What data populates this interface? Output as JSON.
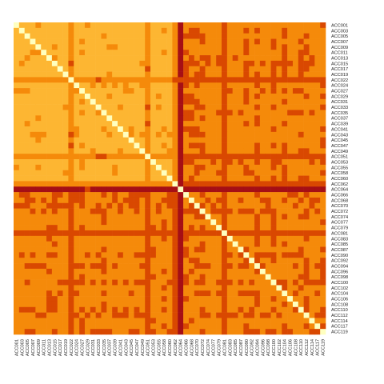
{
  "chart_data": {
    "type": "heatmap",
    "title": "",
    "xlabel": "",
    "ylabel": "",
    "row_labels": [
      "ACC001",
      "ACC003",
      "ACC005",
      "ACC007",
      "ACC009",
      "ACC011",
      "ACC013",
      "ACC015",
      "ACC017",
      "ACC019",
      "ACC022",
      "ACC024",
      "ACC027",
      "ACC029",
      "ACC031",
      "ACC033",
      "ACC035",
      "ACC037",
      "ACC039",
      "ACC041",
      "ACC043",
      "ACC045",
      "ACC047",
      "ACC049",
      "ACC051",
      "ACC053",
      "ACC055",
      "ACC058",
      "ACC060",
      "ACC062",
      "ACC064",
      "ACC066",
      "ACC068",
      "ACC070",
      "ACC072",
      "ACC074",
      "ACC077",
      "ACC079",
      "ACC081",
      "ACC083",
      "ACC085",
      "ACC087",
      "ACC090",
      "ACC092",
      "ACC094",
      "ACC096",
      "ACC098",
      "ACC100",
      "ACC102",
      "ACC104",
      "ACC106",
      "ACC108",
      "ACC110",
      "ACC112",
      "ACC114",
      "ACC117",
      "ACC119"
    ],
    "col_labels": [
      "ACC001",
      "ACC003",
      "ACC005",
      "ACC007",
      "ACC009",
      "ACC011",
      "ACC013",
      "ACC015",
      "ACC017",
      "ACC019",
      "ACC022",
      "ACC024",
      "ACC027",
      "ACC029",
      "ACC031",
      "ACC033",
      "ACC035",
      "ACC037",
      "ACC039",
      "ACC041",
      "ACC043",
      "ACC045",
      "ACC047",
      "ACC049",
      "ACC051",
      "ACC053",
      "ACC055",
      "ACC058",
      "ACC060",
      "ACC062",
      "ACC064",
      "ACC066",
      "ACC068",
      "ACC070",
      "ACC072",
      "ACC074",
      "ACC077",
      "ACC079",
      "ACC081",
      "ACC083",
      "ACC085",
      "ACC087",
      "ACC090",
      "ACC092",
      "ACC094",
      "ACC096",
      "ACC098",
      "ACC100",
      "ACC102",
      "ACC104",
      "ACC106",
      "ACC108",
      "ACC110",
      "ACC112",
      "ACC114",
      "ACC117",
      "ACC119"
    ],
    "n_cells": 57,
    "cluster_boundary_label": "ACC064",
    "values_note": "",
    "colormap": [
      "#ffffbf",
      "#fdb632",
      "#f58a0a",
      "#d94801",
      "#a50f15"
    ],
    "diagonal_value": 1.0,
    "legend": "none",
    "grid": false
  }
}
